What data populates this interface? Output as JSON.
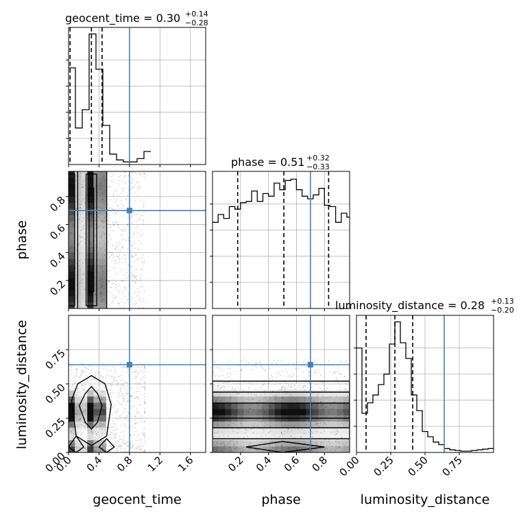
{
  "chart_data": {
    "type": "corner",
    "truth_color": "#4682b4",
    "hist_color": "#000000",
    "parameters": [
      {
        "name": "geocent_time",
        "xlabel": "geocent_time",
        "ylabel": "",
        "range": [
          0.0,
          1.8
        ],
        "ticks": [
          0.0,
          0.4,
          0.8,
          1.2,
          1.6
        ],
        "tick_labels": [
          "0.0",
          "0.4",
          "0.8",
          "1.2",
          "1.6"
        ],
        "truth": 0.8,
        "quantiles": [
          0.02,
          0.3,
          0.44
        ],
        "title": {
          "main": "geocent_time = 0.30",
          "plus": "+0.14",
          "minus": "−0.28"
        },
        "hist": {
          "edges": [
            0.0,
            0.09,
            0.18,
            0.27,
            0.36,
            0.45,
            0.54,
            0.63,
            0.72,
            0.81,
            0.9,
            0.99,
            1.08
          ],
          "counts": [
            0.74,
            0.28,
            0.42,
            1.0,
            0.73,
            0.3,
            0.08,
            0.035,
            0.02,
            0.02,
            0.045,
            0.1
          ]
        }
      },
      {
        "name": "phase",
        "xlabel": "phase",
        "ylabel": "phase",
        "range": [
          0.0,
          0.98
        ],
        "ticks": [
          0.2,
          0.4,
          0.6,
          0.8
        ],
        "tick_labels": [
          "0.2",
          "0.4",
          "0.6",
          "0.8"
        ],
        "truth": 0.7,
        "quantiles": [
          0.18,
          0.51,
          0.83
        ],
        "title": {
          "main": "phase = 0.51",
          "plus": "+0.32",
          "minus": "−0.33"
        },
        "hist": {
          "edges": [
            0.0,
            0.04,
            0.08,
            0.12,
            0.16,
            0.2,
            0.24,
            0.28,
            0.32,
            0.36,
            0.4,
            0.44,
            0.48,
            0.52,
            0.56,
            0.6,
            0.64,
            0.68,
            0.72,
            0.76,
            0.8,
            0.84,
            0.88,
            0.92,
            0.96,
            0.98
          ],
          "counts": [
            0.66,
            0.72,
            0.69,
            0.78,
            0.76,
            0.81,
            0.82,
            0.9,
            0.82,
            0.88,
            0.86,
            0.96,
            0.91,
            0.98,
            0.99,
            0.91,
            0.86,
            0.84,
            0.87,
            0.92,
            0.79,
            0.78,
            0.66,
            0.73,
            0.7
          ]
        }
      },
      {
        "name": "luminosity_distance",
        "xlabel": "luminosity_distance",
        "ylabel": "luminosity_distance",
        "range": [
          0.0,
          1.0
        ],
        "ticks": [
          0.0,
          0.25,
          0.5,
          0.75
        ],
        "tick_labels": [
          "0.00",
          "0.25",
          "0.50",
          "0.75"
        ],
        "truth": 0.64,
        "quantiles": [
          0.07,
          0.28,
          0.41
        ],
        "title": {
          "main": "luminosity_distance = 0.28",
          "plus": "+0.13",
          "minus": "−0.20"
        },
        "hist": {
          "edges": [
            0.0,
            0.04,
            0.08,
            0.12,
            0.16,
            0.2,
            0.24,
            0.28,
            0.32,
            0.36,
            0.4,
            0.44,
            0.48,
            0.52,
            0.56,
            0.6,
            0.64,
            0.68,
            0.72,
            0.76,
            0.8,
            0.84,
            0.88,
            0.92,
            0.96,
            1.0
          ],
          "counts": [
            0.8,
            0.3,
            0.38,
            0.44,
            0.52,
            0.6,
            0.83,
            1.0,
            0.84,
            0.72,
            0.44,
            0.32,
            0.16,
            0.12,
            0.08,
            0.06,
            0.03,
            0.02,
            0.015,
            0.01,
            0.01,
            0.015,
            0.02,
            0.025,
            0.03
          ]
        }
      }
    ],
    "marginal_y_ticks": [
      0.2,
      0.4,
      0.6,
      0.8
    ],
    "marginal_y_max": 1.05
  }
}
